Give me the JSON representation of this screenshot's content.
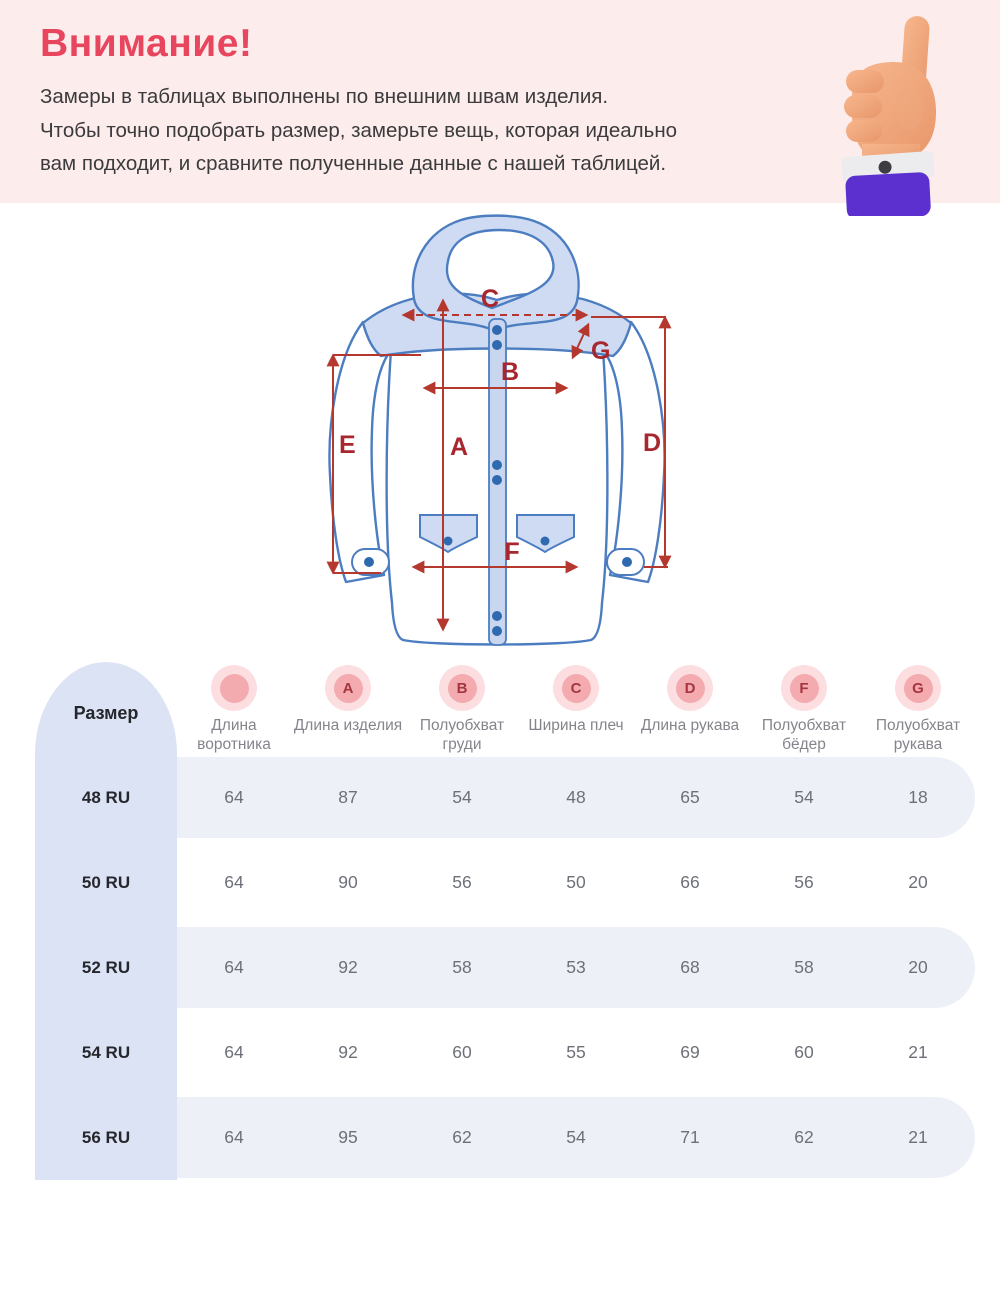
{
  "notice": {
    "title": "Внимание!",
    "lines": [
      "Замеры в таблицах выполнены по внешним швам изделия.",
      "Чтобы точно подобрать размер, замерьте вещь, которая идеально вам подходит, и сравните полученные данные с нашей таблицей."
    ]
  },
  "diagram": {
    "labels": {
      "A": "A",
      "B": "B",
      "C": "C",
      "D": "D",
      "E": "E",
      "F": "F",
      "G": "G"
    }
  },
  "table": {
    "size_header": "Размер",
    "columns": [
      {
        "badge": "",
        "label": "Длина воротника"
      },
      {
        "badge": "A",
        "label": "Длина изделия"
      },
      {
        "badge": "B",
        "label": "Полуобхват груди"
      },
      {
        "badge": "C",
        "label": "Ширина плеч"
      },
      {
        "badge": "D",
        "label": "Длина рукава"
      },
      {
        "badge": "F",
        "label": "Полуобхват бёдер"
      },
      {
        "badge": "G",
        "label": "Полуобхват рукава"
      }
    ],
    "rows": [
      {
        "size": "48 RU",
        "values": [
          "64",
          "87",
          "54",
          "48",
          "65",
          "54",
          "18"
        ]
      },
      {
        "size": "50 RU",
        "values": [
          "64",
          "90",
          "56",
          "50",
          "66",
          "56",
          "20"
        ]
      },
      {
        "size": "52 RU",
        "values": [
          "64",
          "92",
          "58",
          "53",
          "68",
          "58",
          "20"
        ]
      },
      {
        "size": "54 RU",
        "values": [
          "64",
          "92",
          "60",
          "55",
          "69",
          "60",
          "21"
        ]
      },
      {
        "size": "56 RU",
        "values": [
          "64",
          "95",
          "62",
          "54",
          "71",
          "62",
          "21"
        ]
      }
    ]
  },
  "colors": {
    "accent_pink": "#e8455f",
    "band_bg": "#fcedec",
    "size_col_bg": "#dbe3f4",
    "row_stripe": "#edf0f7",
    "badge_outer": "#fcdee1",
    "badge_inner": "#f3abaf",
    "badge_letter": "#a63540",
    "measure_line": "#b5382f",
    "jacket_outline": "#4c7dc0",
    "jacket_fill": "#cfdbf2",
    "sleeve_purple": "#5b30ce"
  }
}
